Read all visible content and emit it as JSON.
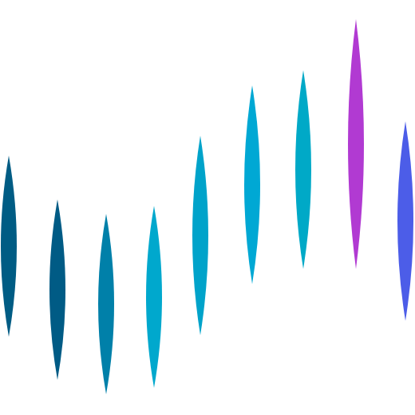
{
  "graphic": {
    "background_color": "#ffffff",
    "bars": [
      {
        "color": "#005c84"
      },
      {
        "color": "#005b85"
      },
      {
        "color": "#0080a9"
      },
      {
        "color": "#00a8cd"
      },
      {
        "color": "#00a3ca"
      },
      {
        "color": "#00a8d4"
      },
      {
        "color": "#00a9c7"
      },
      {
        "color": "#b13ad2"
      },
      {
        "color": "#4c5de8"
      }
    ]
  }
}
